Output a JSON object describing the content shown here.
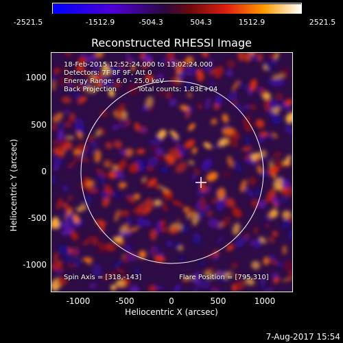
{
  "colorbar": {
    "ticks": [
      "-2521.5",
      "-1512.9",
      "-504.3",
      "504.3",
      "1512.9",
      "2521.5"
    ],
    "tick_values": [
      -2521.5,
      -1512.9,
      -504.3,
      504.3,
      1512.9,
      2521.5
    ],
    "colors": [
      "#0000ff",
      "#5a00c8",
      "#3a1658",
      "#a01010",
      "#ff6a00",
      "#ffffff"
    ]
  },
  "title": "Reconstructed RHESSI Image",
  "annotations": {
    "time": "18-Feb-2015 12:52:24.000 to 13:02:24.000",
    "detectors": "Detectors: 7F 8F 9F, Att 0",
    "energy": "Energy Range: 6.0 - 25.0 keV",
    "method": "Back Projection",
    "counts": "Total counts: 1.83E+04",
    "spin_axis": "Spin Axis = [318,-143]",
    "flare_position": "Flare Position = [795,310]"
  },
  "axes": {
    "xlabel": "Heliocentric X (arcsec)",
    "ylabel": "Heliocentric Y (arcsec)",
    "xticks": [
      "-1000",
      "-500",
      "0",
      "500",
      "1000"
    ],
    "yticks": [
      "1000",
      "500",
      "0",
      "-500",
      "-1000"
    ],
    "xlim": [
      -1250,
      1300
    ],
    "ylim": [
      -1270,
      1250
    ]
  },
  "footer": "7-Aug-2017 15:54"
}
